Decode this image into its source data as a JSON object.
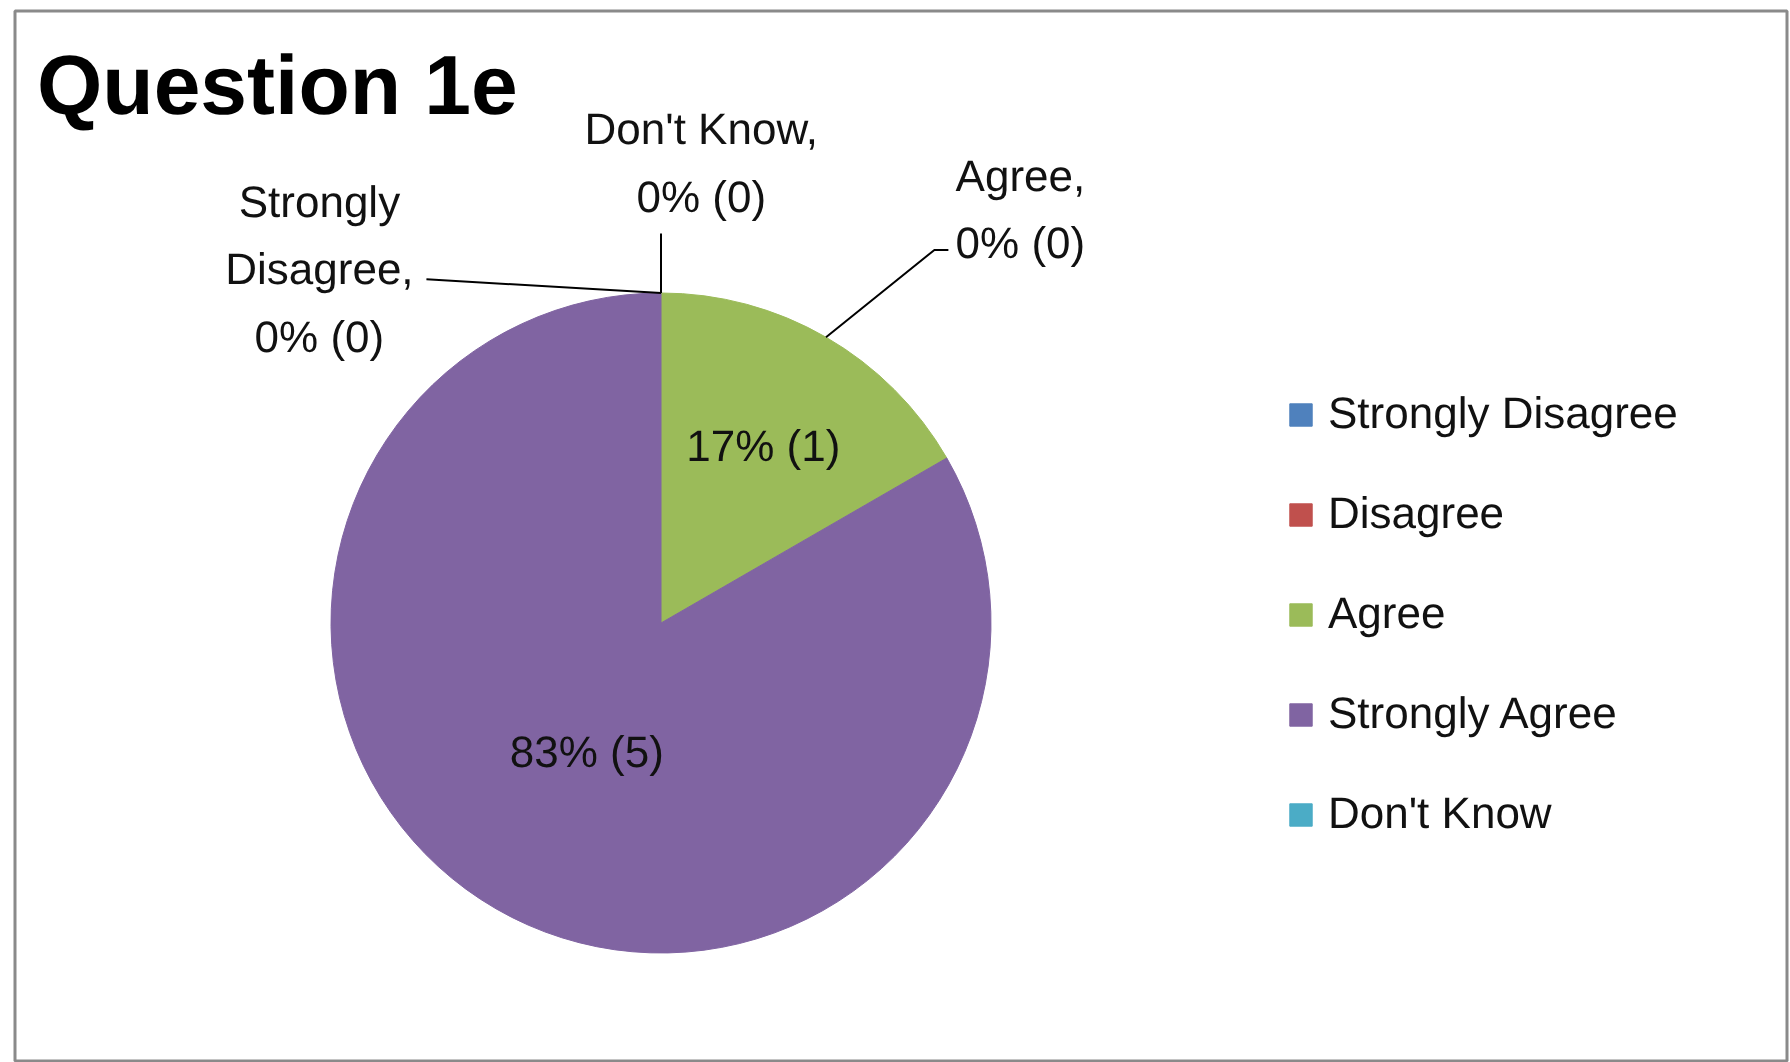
{
  "chart_data": {
    "type": "pie",
    "title": "Question 1e",
    "categories": [
      "Strongly Disagree",
      "Disagree",
      "Agree",
      "Strongly Agree",
      "Don't Know"
    ],
    "values": [
      0,
      0,
      1,
      5,
      0
    ],
    "colors": [
      "#4f81bd",
      "#c0504d",
      "#9bbb59",
      "#8064a2",
      "#4bacc6"
    ],
    "value_labels": [
      "Strongly Disagree, 0% (0)",
      "Agree, 0% (0)",
      "17% (1)",
      "83% (5)",
      "Don't Know, 0% (0)"
    ],
    "legend": "right"
  }
}
